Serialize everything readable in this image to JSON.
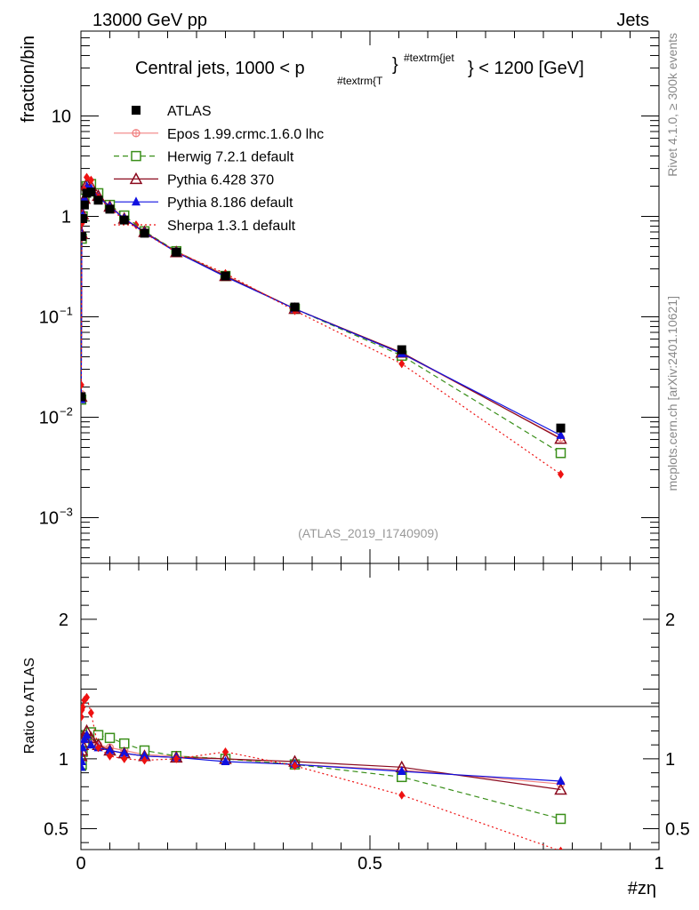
{
  "header": {
    "energy_label": "13000 GeV pp",
    "category_label": "Jets",
    "title_main": "Central jets, 1000 < p",
    "title_sub": "#textrm{T",
    "title_sup": "#textrm{jet",
    "title_tail": "} < 1200 [GeV]",
    "title_brace": "}",
    "side_rivet": "Rivet 4.1.0, ≥ 300k events",
    "side_mcplots": "mcplots.cern.ch [arXiv:2401.10621]",
    "analysis_id": "(ATLAS_2019_I1740909)"
  },
  "axes": {
    "top_ylabel": "fraction/bin",
    "bottom_ylabel": "Ratio to ATLAS",
    "xlabel": "#zη",
    "top_ytick_labels": [
      "10",
      "1",
      "10",
      "10",
      "10"
    ],
    "top_ytick_exps": [
      "",
      "",
      "−1",
      "−2",
      "−3"
    ],
    "bottom_ytick_labels": [
      "2",
      "1",
      "0.5"
    ],
    "xtick_labels": [
      "0",
      "0.5",
      "1"
    ]
  },
  "legend": {
    "items": [
      {
        "label": "ATLAS",
        "color": "#000000"
      },
      {
        "label": "Epos 1.99.crmc.1.6.0 lhc",
        "color": "#f08080"
      },
      {
        "label": "Herwig 7.2.1 default",
        "color": "#3a8f1a"
      },
      {
        "label": "Pythia 6.428 370",
        "color": "#8b0a1e"
      },
      {
        "label": "Pythia 8.186 default",
        "color": "#1010e0"
      },
      {
        "label": "Sherpa 1.3.1 default",
        "color": "#ee1111"
      }
    ]
  },
  "chart_data": {
    "type": "line",
    "title": "Central jets, 1000 < pT(jet) < 1200 [GeV]",
    "xlabel": "#zη",
    "ylabel": "fraction/bin",
    "xlim": [
      0,
      1
    ],
    "ylim": [
      0.00035,
      70
    ],
    "yscale": "log",
    "ratio_ylim": [
      0.35,
      2.4
    ],
    "x": [
      0.0005,
      0.0015,
      0.003,
      0.006,
      0.01,
      0.0175,
      0.03,
      0.05,
      0.075,
      0.11,
      0.165,
      0.25,
      0.37,
      0.555,
      0.83
    ],
    "series": [
      {
        "name": "ATLAS",
        "marker": "square",
        "values": [
          0.016,
          0.63,
          0.95,
          1.3,
          1.7,
          1.75,
          1.45,
          1.18,
          0.92,
          0.68,
          0.44,
          0.255,
          0.125,
          0.047,
          0.0078
        ]
      },
      {
        "name": "Epos 1.99.crmc.1.6.0 lhc",
        "marker": "circle-cross",
        "values": [
          0.017,
          0.65,
          1.0,
          1.45,
          2.0,
          2.0,
          1.6,
          1.3,
          0.95,
          0.7,
          0.45,
          0.26,
          0.12,
          0.043,
          0.0062
        ]
      },
      {
        "name": "Herwig 7.2.1 default",
        "marker": "open-square",
        "values": [
          0.015,
          0.6,
          1.0,
          1.5,
          2.0,
          2.1,
          1.7,
          1.3,
          1.02,
          0.71,
          0.45,
          0.255,
          0.12,
          0.041,
          0.0044
        ]
      },
      {
        "name": "Pythia 6.428 370",
        "marker": "open-triangle",
        "values": [
          0.016,
          0.67,
          1.05,
          1.5,
          2.1,
          2.0,
          1.6,
          1.25,
          0.95,
          0.7,
          0.44,
          0.255,
          0.12,
          0.044,
          0.0061
        ]
      },
      {
        "name": "Pythia 8.186 default",
        "marker": "filled-triangle",
        "values": [
          0.015,
          0.62,
          1.02,
          1.5,
          2.0,
          1.9,
          1.55,
          1.25,
          0.95,
          0.69,
          0.44,
          0.25,
          0.12,
          0.043,
          0.0066
        ]
      },
      {
        "name": "Sherpa 1.3.1 default",
        "marker": "diamond",
        "values": [
          0.021,
          0.85,
          1.3,
          1.85,
          2.45,
          2.3,
          1.55,
          1.2,
          0.92,
          0.68,
          0.44,
          0.27,
          0.115,
          0.034,
          0.0027
        ]
      }
    ],
    "ratios": [
      {
        "name": "Epos 1.99.crmc.1.6.0 lhc",
        "values": [
          1.06,
          1.05,
          1.06,
          1.1,
          1.15,
          1.13,
          1.1,
          1.08,
          1.06,
          1.03,
          1.02,
          1.0,
          0.96,
          0.92,
          0.82
        ]
      },
      {
        "name": "Herwig 7.2.1 default",
        "values": [
          0.95,
          0.96,
          1.05,
          1.12,
          1.17,
          1.19,
          1.17,
          1.15,
          1.11,
          1.06,
          1.02,
          1.0,
          0.96,
          0.87,
          0.57
        ]
      },
      {
        "name": "Pythia 6.428 370",
        "values": [
          1.02,
          1.06,
          1.1,
          1.15,
          1.2,
          1.15,
          1.1,
          1.06,
          1.04,
          1.02,
          1.01,
          1.0,
          0.98,
          0.94,
          0.78
        ]
      },
      {
        "name": "Pythia 8.186 default",
        "values": [
          0.94,
          0.98,
          1.08,
          1.14,
          1.17,
          1.1,
          1.08,
          1.06,
          1.04,
          1.02,
          1.01,
          0.98,
          0.96,
          0.91,
          0.84
        ]
      },
      {
        "name": "Sherpa 1.3.1 default",
        "values": [
          1.3,
          1.35,
          1.37,
          1.42,
          1.44,
          1.33,
          1.08,
          1.02,
          1.0,
          0.99,
          1.0,
          1.05,
          0.95,
          0.74,
          0.34
        ]
      }
    ]
  }
}
